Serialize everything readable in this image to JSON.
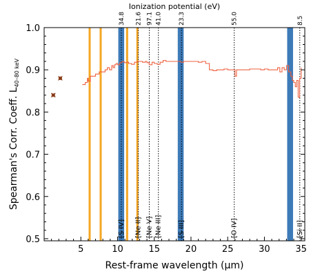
{
  "chart_data": {
    "type": "line",
    "xlabel": "Rest-frame wavelength (μm)",
    "ylabel": "Spearman's Corr. Coeff. L",
    "ylabel_subscript": "40–80 keV",
    "top_axis_label": "Ionization potential (eV)",
    "xlim": [
      0,
      35.5
    ],
    "ylim": [
      0.495,
      1.0
    ],
    "xticks": [
      5,
      10,
      15,
      20,
      25,
      30,
      35
    ],
    "yticks": [
      0.5,
      0.6,
      0.7,
      0.8,
      0.9,
      1.0
    ],
    "xtick_labels": [
      "5",
      "10",
      "15",
      "20",
      "25",
      "30",
      "35"
    ],
    "ytick_labels": [
      "0.5",
      "0.6",
      "0.7",
      "0.8",
      "0.9",
      "1.0"
    ],
    "grid": false,
    "colors": {
      "series": "#ee6040",
      "marker": "#a0522d",
      "pah_band": "#f5a623",
      "ion_band": "#3d7ab8",
      "ion_line": "#000000"
    },
    "orange_bands": [
      6.2,
      7.7,
      11.3,
      12.7
    ],
    "blue_bands": [
      {
        "center": 10.5,
        "width": 0.8
      },
      {
        "center": 18.6,
        "width": 0.8
      },
      {
        "center": 33.5,
        "width": 0.8
      }
    ],
    "emission_lines": [
      {
        "x": 10.51,
        "ionization": "34.8",
        "label": "[S IV]"
      },
      {
        "x": 12.81,
        "ionization": "21.6",
        "label": "[Ne II]"
      },
      {
        "x": 14.32,
        "ionization": "97.1",
        "label": "[Ne V]"
      },
      {
        "x": 15.56,
        "ionization": "41.0",
        "label": "[Ne III]"
      },
      {
        "x": 18.71,
        "ionization": "23.3",
        "label": "[S III]"
      },
      {
        "x": 25.89,
        "ionization": "55.0",
        "label": "[O IV]"
      },
      {
        "x": 34.82,
        "ionization": "8.5",
        "label": "[Si II]"
      }
    ],
    "markers": [
      {
        "x": 1.25,
        "y": 0.84
      },
      {
        "x": 2.2,
        "y": 0.88
      }
    ],
    "series": [
      {
        "x": [
          5.2,
          5.6,
          5.9,
          6.0,
          6.3,
          6.6,
          7.0,
          7.5,
          8.0,
          8.3,
          8.6,
          8.9,
          9.2,
          9.4,
          9.6,
          9.8,
          10.0,
          10.3,
          10.6,
          10.9,
          11.2,
          11.5,
          11.9,
          12.3,
          12.7,
          13.0,
          13.4,
          13.8,
          14.0,
          14.3,
          14.7,
          15.0,
          15.4,
          15.8,
          16.2,
          16.6,
          17.0,
          17.4,
          17.8,
          18.2,
          18.6,
          19.0,
          19.5,
          20.0,
          20.5,
          21.0,
          21.5,
          22.0,
          22.5,
          23.0,
          23.5,
          24.0,
          24.5,
          25.0,
          25.5,
          25.8,
          26.0,
          26.2,
          26.6,
          27.0,
          27.5,
          28.0,
          28.5,
          29.0,
          29.5,
          30.0,
          30.5,
          31.0,
          31.5,
          31.8,
          32.1,
          32.4,
          32.7,
          33.0,
          33.3,
          33.6,
          33.8,
          34.0,
          34.2,
          34.4,
          34.6,
          34.8,
          35.0
        ],
        "y": [
          0.865,
          0.87,
          0.88,
          0.873,
          0.885,
          0.885,
          0.89,
          0.895,
          0.895,
          0.9,
          0.905,
          0.9,
          0.91,
          0.905,
          0.912,
          0.915,
          0.912,
          0.917,
          0.92,
          0.917,
          0.918,
          0.915,
          0.913,
          0.918,
          0.92,
          0.92,
          0.918,
          0.92,
          0.917,
          0.912,
          0.918,
          0.915,
          0.913,
          0.918,
          0.922,
          0.92,
          0.92,
          0.92,
          0.92,
          0.92,
          0.918,
          0.92,
          0.92,
          0.92,
          0.92,
          0.918,
          0.92,
          0.915,
          0.9,
          0.898,
          0.9,
          0.9,
          0.902,
          0.9,
          0.9,
          0.9,
          0.885,
          0.9,
          0.9,
          0.9,
          0.9,
          0.902,
          0.902,
          0.902,
          0.9,
          0.902,
          0.9,
          0.9,
          0.9,
          0.905,
          0.895,
          0.905,
          0.9,
          0.91,
          0.895,
          0.885,
          0.875,
          0.87,
          0.86,
          0.875,
          0.835,
          0.88,
          0.905
        ]
      }
    ]
  }
}
